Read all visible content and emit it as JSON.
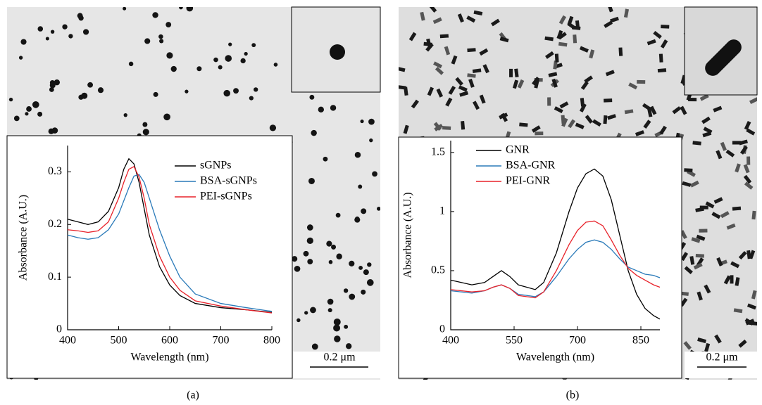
{
  "chart_data": [
    {
      "type": "line",
      "x_label": "Wavelength (nm)",
      "y_label": "Absorbance (A.U.)",
      "xlim": [
        400,
        800
      ],
      "xticks": [
        400,
        500,
        600,
        700,
        800
      ],
      "ylim": [
        0,
        0.35
      ],
      "yticks": [
        0,
        0.1,
        0.2,
        0.3
      ],
      "x": [
        400,
        420,
        440,
        460,
        480,
        500,
        510,
        520,
        530,
        540,
        550,
        560,
        580,
        600,
        620,
        650,
        700,
        750,
        800
      ],
      "series": [
        {
          "name": "sGNPs",
          "color": "#000000",
          "values": [
            0.21,
            0.205,
            0.2,
            0.205,
            0.225,
            0.27,
            0.305,
            0.325,
            0.315,
            0.28,
            0.23,
            0.18,
            0.12,
            0.085,
            0.065,
            0.05,
            0.042,
            0.038,
            0.033
          ]
        },
        {
          "name": "BSA-sGNPs",
          "color": "#2a7ab9",
          "values": [
            0.18,
            0.175,
            0.172,
            0.175,
            0.19,
            0.22,
            0.245,
            0.27,
            0.292,
            0.295,
            0.28,
            0.25,
            0.19,
            0.14,
            0.1,
            0.068,
            0.05,
            0.042,
            0.035
          ]
        },
        {
          "name": "PEI-sGNPs",
          "color": "#e8222a",
          "values": [
            0.19,
            0.188,
            0.185,
            0.188,
            0.205,
            0.25,
            0.28,
            0.305,
            0.31,
            0.29,
            0.25,
            0.2,
            0.14,
            0.1,
            0.075,
            0.055,
            0.045,
            0.038,
            0.032
          ]
        }
      ]
    },
    {
      "type": "line",
      "x_label": "Wavelength (nm)",
      "y_label": "Absorbance (A.U.)",
      "xlim": [
        400,
        895
      ],
      "xticks": [
        400,
        550,
        700,
        850
      ],
      "ylim": [
        0,
        1.6
      ],
      "yticks": [
        0,
        0.5,
        1,
        1.5
      ],
      "x": [
        400,
        450,
        480,
        500,
        520,
        540,
        560,
        600,
        620,
        650,
        680,
        700,
        720,
        740,
        760,
        780,
        800,
        820,
        840,
        860,
        880,
        895
      ],
      "series": [
        {
          "name": "GNR",
          "color": "#000000",
          "values": [
            0.42,
            0.38,
            0.4,
            0.45,
            0.5,
            0.45,
            0.38,
            0.34,
            0.4,
            0.65,
            1.0,
            1.2,
            1.32,
            1.36,
            1.3,
            1.1,
            0.8,
            0.5,
            0.3,
            0.18,
            0.12,
            0.09
          ]
        },
        {
          "name": "BSA-GNR",
          "color": "#2a7ab9",
          "values": [
            0.33,
            0.31,
            0.33,
            0.36,
            0.38,
            0.35,
            0.3,
            0.28,
            0.32,
            0.45,
            0.6,
            0.68,
            0.74,
            0.76,
            0.74,
            0.68,
            0.6,
            0.53,
            0.5,
            0.47,
            0.46,
            0.44
          ]
        },
        {
          "name": "PEI-GNR",
          "color": "#e8222a",
          "values": [
            0.34,
            0.32,
            0.33,
            0.36,
            0.38,
            0.35,
            0.29,
            0.27,
            0.32,
            0.5,
            0.72,
            0.84,
            0.91,
            0.92,
            0.88,
            0.76,
            0.63,
            0.52,
            0.46,
            0.42,
            0.38,
            0.36
          ]
        }
      ]
    }
  ],
  "panels": [
    {
      "label": "(a)",
      "scale_bar": "0.2 μm"
    },
    {
      "label": "(b)",
      "scale_bar": "0.2 μm"
    }
  ]
}
